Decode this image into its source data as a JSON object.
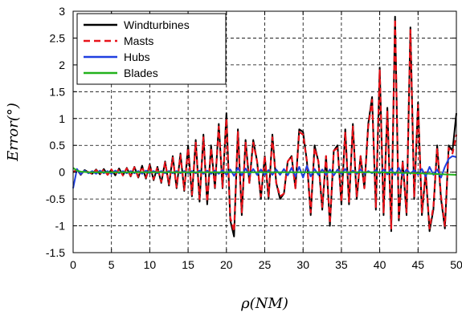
{
  "chart_data": {
    "type": "line",
    "xlabel": "ρ(NM)",
    "ylabel": "Error(°)",
    "xlim": [
      0,
      50
    ],
    "ylim": [
      -1.5,
      3
    ],
    "xticks": [
      "0",
      "5",
      "10",
      "15",
      "20",
      "25",
      "30",
      "35",
      "40",
      "45",
      "50"
    ],
    "yticks": [
      "3",
      "2.5",
      "2",
      "1.5",
      "1",
      "0.5",
      "0",
      "-0.5",
      "-1",
      "-1.5"
    ],
    "grid": true,
    "legend_position": "top-left",
    "series": [
      {
        "name": "Windturbines",
        "color": "#000000",
        "style": "solid",
        "x": [
          0,
          0.5,
          1,
          1.5,
          2,
          2.5,
          3,
          3.5,
          4,
          4.5,
          5,
          5.5,
          6,
          6.5,
          7,
          7.5,
          8,
          8.5,
          9,
          9.5,
          10,
          10.5,
          11,
          11.5,
          12,
          12.5,
          13,
          13.5,
          14,
          14.5,
          15,
          15.5,
          16,
          16.5,
          17,
          17.5,
          18,
          18.5,
          19,
          19.5,
          20,
          20.5,
          21,
          21.5,
          22,
          22.5,
          23,
          23.5,
          24,
          24.5,
          25,
          25.5,
          26,
          26.5,
          27,
          27.5,
          28,
          28.5,
          29,
          29.5,
          30,
          30.5,
          31,
          31.5,
          32,
          32.5,
          33,
          33.5,
          34,
          34.5,
          35,
          35.5,
          36,
          36.5,
          37,
          37.5,
          38,
          38.5,
          39,
          39.5,
          40,
          40.5,
          41,
          41.5,
          42,
          42.5,
          43,
          43.5,
          44,
          44.5,
          45,
          45.5,
          46,
          46.5,
          47,
          47.5,
          48,
          48.5,
          49,
          49.5,
          50
        ],
        "y": [
          0,
          0.05,
          -0.05,
          0.04,
          0,
          -0.03,
          0.05,
          -0.04,
          0.06,
          -0.05,
          0.05,
          -0.06,
          0.07,
          -0.06,
          0.08,
          -0.08,
          0.1,
          -0.1,
          0.12,
          -0.12,
          0.15,
          -0.15,
          0.1,
          -0.2,
          0.2,
          -0.25,
          0.3,
          -0.3,
          0.35,
          -0.35,
          0.5,
          -0.45,
          0.6,
          -0.55,
          0.7,
          -0.6,
          0.5,
          -0.3,
          0.9,
          -0.3,
          1.1,
          -0.9,
          -1.2,
          0.8,
          -0.8,
          0.6,
          -0.2,
          0.6,
          0.2,
          -0.5,
          0.3,
          -0.5,
          0.7,
          -0.2,
          -0.5,
          -0.4,
          0.2,
          0.3,
          -0.3,
          0.8,
          0.75,
          0.2,
          -0.8,
          0.5,
          0.2,
          -0.7,
          0.3,
          -1.0,
          0.4,
          0.5,
          -0.6,
          0.8,
          -0.6,
          0.9,
          -0.5,
          0.3,
          -0.3,
          0.9,
          1.4,
          -0.7,
          1.95,
          -0.8,
          1.2,
          -1.1,
          2.9,
          -0.9,
          0.2,
          -0.8,
          2.7,
          -0.5,
          1.3,
          -0.8,
          0.0,
          -1.1,
          -0.7,
          0.5,
          -0.5,
          -1.05,
          0.5,
          0.4,
          1.1
        ]
      },
      {
        "name": "Masts",
        "color": "#e8131a",
        "style": "dashed",
        "x": [
          0,
          0.5,
          1,
          1.5,
          2,
          2.5,
          3,
          3.5,
          4,
          4.5,
          5,
          5.5,
          6,
          6.5,
          7,
          7.5,
          8,
          8.5,
          9,
          9.5,
          10,
          10.5,
          11,
          11.5,
          12,
          12.5,
          13,
          13.5,
          14,
          14.5,
          15,
          15.5,
          16,
          16.5,
          17,
          17.5,
          18,
          18.5,
          19,
          19.5,
          20,
          20.5,
          21,
          21.5,
          22,
          22.5,
          23,
          23.5,
          24,
          24.5,
          25,
          25.5,
          26,
          26.5,
          27,
          27.5,
          28,
          28.5,
          29,
          29.5,
          30,
          30.5,
          31,
          31.5,
          32,
          32.5,
          33,
          33.5,
          34,
          34.5,
          35,
          35.5,
          36,
          36.5,
          37,
          37.5,
          38,
          38.5,
          39,
          39.5,
          40,
          40.5,
          41,
          41.5,
          42,
          42.5,
          43,
          43.5,
          44,
          44.5,
          45,
          45.5,
          46,
          46.5,
          47,
          47.5,
          48,
          48.5,
          49,
          49.5,
          50
        ],
        "y": [
          0,
          0.04,
          -0.04,
          0.03,
          0,
          -0.03,
          0.04,
          -0.04,
          0.05,
          -0.05,
          0.05,
          -0.05,
          0.06,
          -0.06,
          0.07,
          -0.07,
          0.09,
          -0.09,
          0.1,
          -0.1,
          0.13,
          -0.13,
          0.09,
          -0.18,
          0.18,
          -0.22,
          0.27,
          -0.28,
          0.32,
          -0.33,
          0.45,
          -0.42,
          0.55,
          -0.5,
          0.65,
          -0.55,
          0.45,
          -0.28,
          0.85,
          -0.28,
          1.0,
          -0.85,
          -1.1,
          0.75,
          -0.75,
          0.55,
          -0.2,
          0.55,
          0.2,
          -0.45,
          0.3,
          -0.45,
          0.65,
          -0.2,
          -0.45,
          -0.4,
          0.2,
          0.3,
          -0.3,
          0.75,
          0.7,
          0.2,
          -0.75,
          0.45,
          0.2,
          -0.65,
          0.3,
          -0.95,
          0.4,
          0.45,
          -0.55,
          0.75,
          -0.55,
          0.85,
          -0.45,
          0.3,
          -0.3,
          0.85,
          1.35,
          -0.65,
          1.9,
          -0.75,
          1.15,
          -1.05,
          2.85,
          -0.85,
          0.2,
          -0.75,
          2.65,
          -0.45,
          1.25,
          -0.75,
          0.0,
          -1.05,
          -0.65,
          0.45,
          -0.45,
          -1.0,
          0.45,
          0.35,
          0.7
        ]
      },
      {
        "name": "Hubs",
        "color": "#1f3fe0",
        "style": "solid",
        "x": [
          0,
          0.5,
          1,
          1.5,
          2,
          2.5,
          3,
          3.5,
          4,
          4.5,
          5,
          5.5,
          6,
          6.5,
          7,
          7.5,
          8,
          8.5,
          9,
          9.5,
          10,
          10.5,
          11,
          11.5,
          12,
          12.5,
          13,
          13.5,
          14,
          14.5,
          15,
          15.5,
          16,
          16.5,
          17,
          17.5,
          18,
          18.5,
          19,
          19.5,
          20,
          20.5,
          21,
          21.5,
          22,
          22.5,
          23,
          23.5,
          24,
          24.5,
          25,
          25.5,
          26,
          26.5,
          27,
          27.5,
          28,
          28.5,
          29,
          29.5,
          30,
          30.5,
          31,
          31.5,
          32,
          32.5,
          33,
          33.5,
          34,
          34.5,
          35,
          35.5,
          36,
          36.5,
          37,
          37.5,
          38,
          38.5,
          39,
          39.5,
          40,
          40.5,
          41,
          41.5,
          42,
          42.5,
          43,
          43.5,
          44,
          44.5,
          45,
          45.5,
          46,
          46.5,
          47,
          47.5,
          48,
          48.5,
          49,
          49.5,
          50
        ],
        "y": [
          -0.3,
          0.06,
          -0.04,
          0.03,
          -0.02,
          0.02,
          -0.03,
          0.03,
          -0.02,
          0.02,
          -0.03,
          0.03,
          -0.02,
          0.02,
          -0.02,
          0.02,
          -0.02,
          0.02,
          -0.03,
          0.03,
          -0.02,
          0.02,
          -0.02,
          0.02,
          -0.02,
          0.02,
          -0.02,
          0.02,
          -0.02,
          0.02,
          -0.02,
          0.02,
          -0.02,
          0.03,
          -0.03,
          0.03,
          -0.03,
          0.03,
          -0.03,
          0.04,
          -0.05,
          0.05,
          -0.07,
          0.08,
          -0.06,
          0.07,
          -0.05,
          0.06,
          -0.05,
          0.05,
          -0.05,
          0.04,
          -0.05,
          0.05,
          -0.05,
          0.06,
          -0.06,
          0.08,
          -0.08,
          0.1,
          -0.1,
          0.12,
          -0.08,
          0.06,
          -0.05,
          0.05,
          -0.05,
          0.05,
          -0.06,
          0.05,
          -0.03,
          0.06,
          -0.04,
          0.03,
          -0.03,
          0.05,
          -0.03,
          0.02,
          -0.02,
          0.04,
          -0.03,
          0.05,
          -0.04,
          0.06,
          -0.05,
          0.08,
          -0.06,
          0.05,
          -0.03,
          0.04,
          -0.05,
          0.06,
          -0.08,
          0.1,
          -0.05,
          0.05,
          -0.1,
          0.1,
          0.25,
          0.3,
          0.28
        ]
      },
      {
        "name": "Blades",
        "color": "#22b21c",
        "style": "solid",
        "x": [
          0,
          0.5,
          1,
          2,
          5,
          10,
          15,
          20,
          25,
          30,
          35,
          40,
          45,
          50
        ],
        "y": [
          0.08,
          0.03,
          0.01,
          0.0,
          0.0,
          0.0,
          0.0,
          0.0,
          0.0,
          0.0,
          0.0,
          0.0,
          -0.02,
          -0.05
        ]
      }
    ]
  }
}
